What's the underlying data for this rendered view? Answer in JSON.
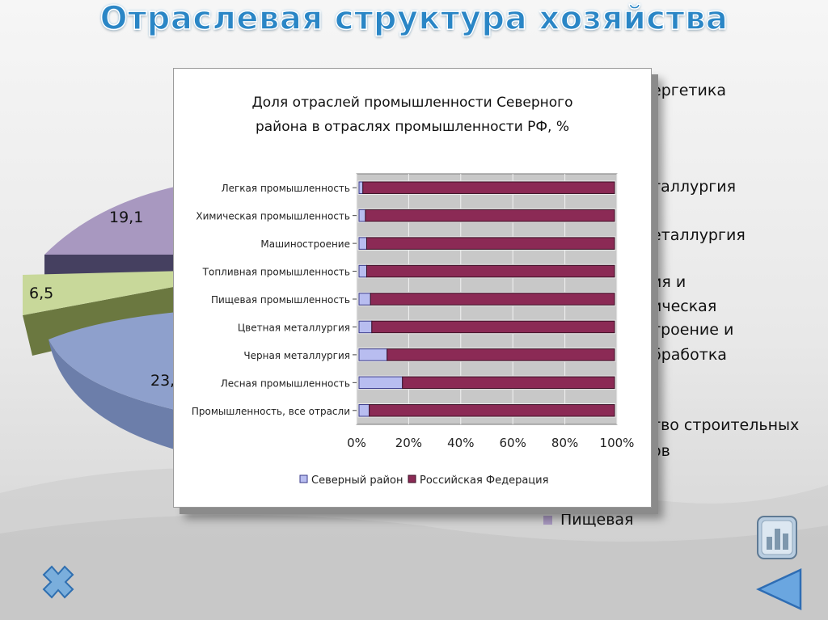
{
  "slide": {
    "title": "Отраслевая структура хозяйства"
  },
  "pie": {
    "labels": [
      "19,1",
      "6,5",
      "23,"
    ],
    "colors": [
      "#a898c0",
      "#c8d89a",
      "#8ea0cc"
    ]
  },
  "legend": {
    "partial_items": [
      "ергетика",
      "таллургия",
      "еталлургия",
      "ия и",
      "ическая",
      "троение и",
      "бработка",
      "тво строительных",
      "ов"
    ],
    "full_item": {
      "label": "Пищевая",
      "color": "#a898c0"
    }
  },
  "chart_data": {
    "type": "bar",
    "orientation": "horizontal",
    "stacked_percent": true,
    "title": "Доля отраслей промышленности Северного района в отраслях промышленности РФ, %",
    "title_lines": [
      "Доля отраслей промышленности Северного",
      "района в отраслях промышленности РФ, %"
    ],
    "categories": [
      "Легкая промышленность",
      "Химическая промышленность",
      "Машиностроение",
      "Топливная промышленность",
      "Пищевая промышленность",
      "Цветная металлургия",
      "Черная металлургия",
      "Лесная промышленность",
      "Промышленность, все отрасли"
    ],
    "series": [
      {
        "name": "Северный район",
        "values": [
          1.5,
          2.5,
          3,
          3,
          4.5,
          5,
          11,
          17,
          4
        ],
        "color": "#b8bdf0"
      },
      {
        "name": "Российская Федерация",
        "values": [
          98.5,
          97.5,
          97,
          97,
          95.5,
          95,
          89,
          83,
          96
        ],
        "color": "#8b2a55"
      }
    ],
    "xticks": [
      "0%",
      "20%",
      "40%",
      "60%",
      "80%",
      "100%"
    ],
    "xlim": [
      0,
      100
    ],
    "grid": true,
    "legend_position": "bottom",
    "background": "#c8c8c8"
  },
  "icons": {
    "close": "close-x-icon",
    "chart": "bar-chart-icon",
    "back": "back-triangle-icon"
  }
}
